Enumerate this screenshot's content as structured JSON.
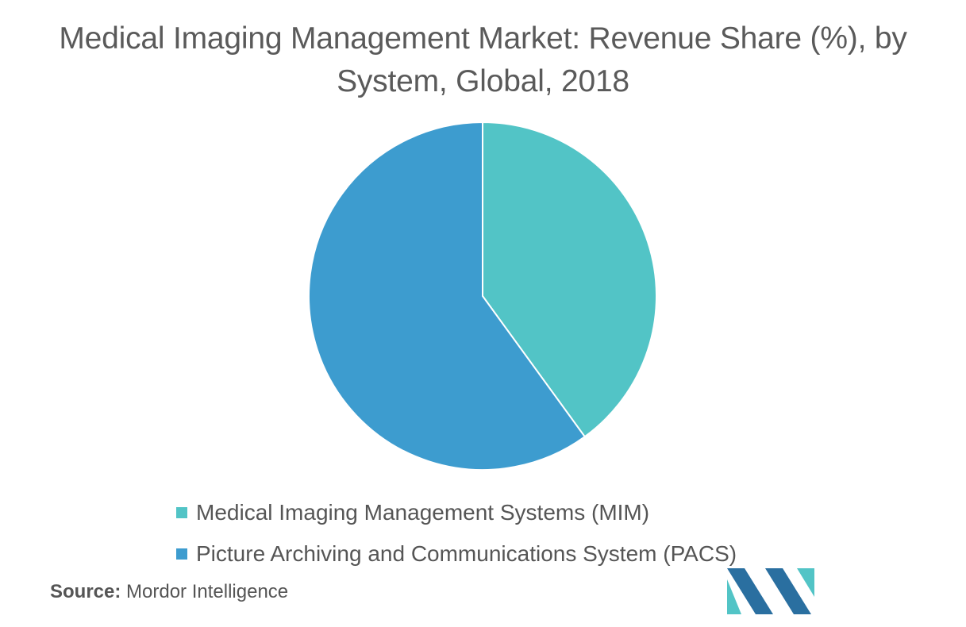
{
  "chart_data": {
    "type": "pie",
    "title": "Medical Imaging Management Market: Revenue Share (%), by System, Global, 2018",
    "slices": [
      {
        "name": "Medical Imaging Management Systems (MIM)",
        "value": 40,
        "color": "#52c4c6"
      },
      {
        "name": "Picture Archiving and Communications System (PACS)",
        "value": 60,
        "color": "#3d9ccf"
      }
    ],
    "start_angle_deg": 0,
    "direction": "clockwise",
    "legend_position": "bottom"
  },
  "source": {
    "label": "Source:",
    "text": "Mordor Intelligence"
  },
  "logo": {
    "icon": "mordor-intelligence-logo-icon",
    "colors": [
      "#2a6fa0",
      "#52c4c6"
    ]
  }
}
